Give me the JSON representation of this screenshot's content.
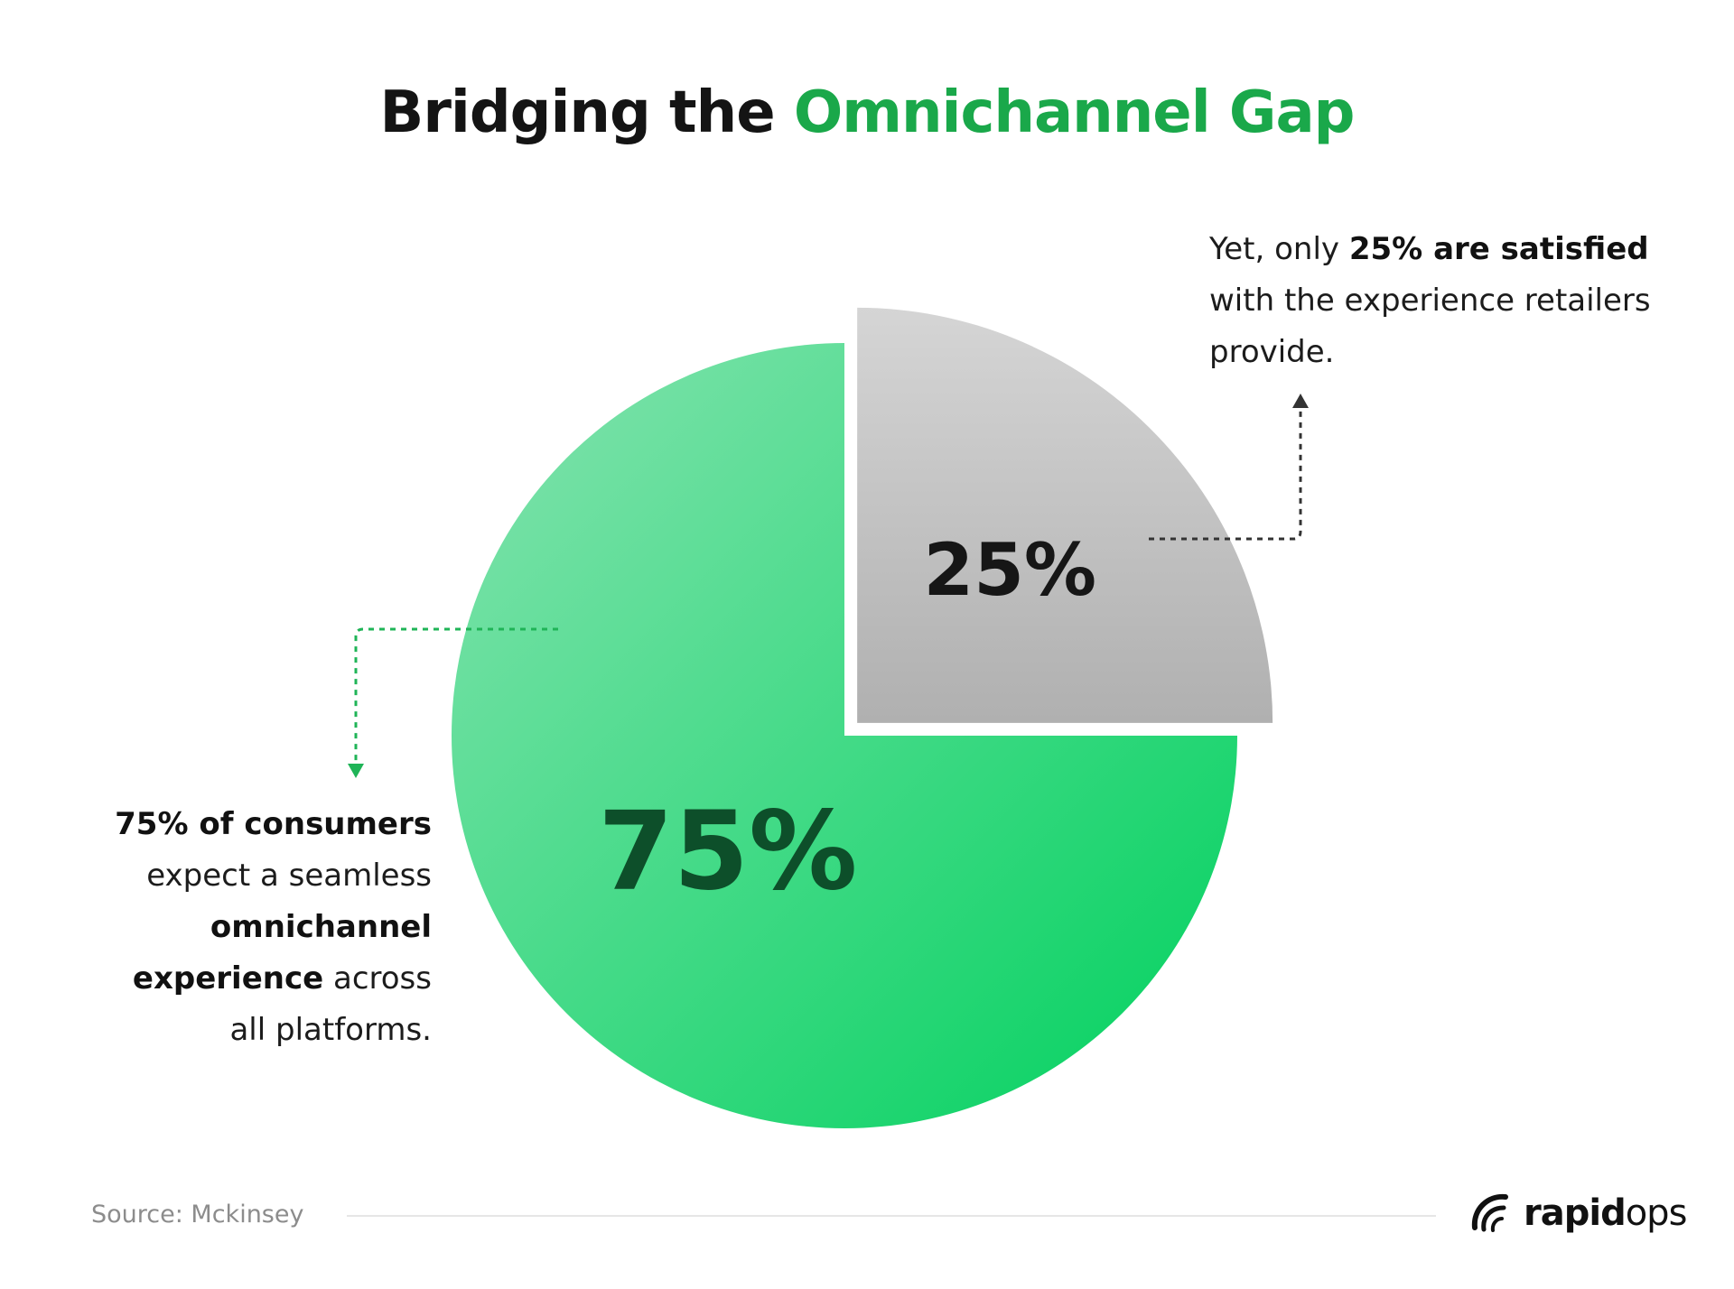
{
  "title": {
    "part1": "Bridging the",
    "part2": "Omnichannel Gap"
  },
  "chart_data": {
    "type": "pie",
    "slices": [
      {
        "label": "75%",
        "value": 75,
        "color_start": "#86e3b0",
        "color_end": "#00d15e"
      },
      {
        "label": "25%",
        "value": 25,
        "color_start": "#d5d5d5",
        "color_end": "#b0b0b0",
        "exploded": true
      }
    ]
  },
  "callouts": {
    "right": {
      "line1_plain": "Yet, only",
      "line1_bold": "25% are satisfied",
      "line2": "with the experience retailers",
      "line3": "provide."
    },
    "left": {
      "line1_bold": "75% of consumers",
      "line2": "expect a seamless",
      "line3_bold": "omnichannel",
      "line4_bold": "experience",
      "line4_plain": "across",
      "line5": "all platforms."
    }
  },
  "footer": {
    "source": "Source: Mckinsey",
    "logo_bold": "rapid",
    "logo_plain": "ops"
  },
  "colors": {
    "accent": "#1aa84a",
    "connector_green": "#1fb457",
    "connector_dark": "#333333",
    "label_75": "#0d4f2a",
    "label_25": "#161616"
  }
}
